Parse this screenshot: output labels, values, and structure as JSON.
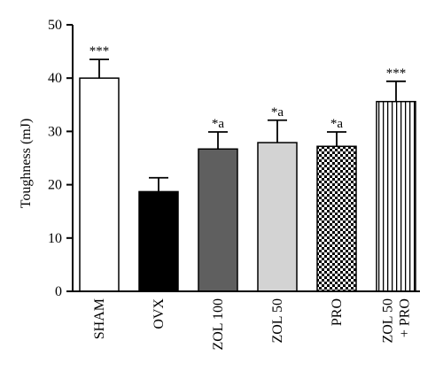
{
  "chart_data": {
    "type": "bar",
    "title": "",
    "xlabel": "",
    "ylabel": "Toughness (mJ)",
    "ylim": [
      0,
      50
    ],
    "yticks": [
      0,
      10,
      20,
      30,
      40,
      50
    ],
    "grid": false,
    "categories": [
      {
        "lines": [
          "SHAM"
        ]
      },
      {
        "lines": [
          "OVX"
        ]
      },
      {
        "lines": [
          "ZOL 100"
        ]
      },
      {
        "lines": [
          "ZOL 50"
        ]
      },
      {
        "lines": [
          "PRO"
        ]
      },
      {
        "lines": [
          "ZOL 50",
          "+ PRO"
        ]
      }
    ],
    "values": [
      40.0,
      18.7,
      26.7,
      27.9,
      27.2,
      35.6
    ],
    "errors": [
      3.5,
      2.6,
      3.2,
      4.2,
      2.7,
      3.8
    ],
    "annotations": [
      "***",
      "",
      "*a",
      "*a",
      "*a",
      "***"
    ],
    "fills": [
      "white",
      "black",
      "dark-gray",
      "light-gray",
      "checkerboard",
      "vertical-stripes"
    ],
    "colors": {
      "axis": "#000000",
      "black": "#000000",
      "dark_gray": "#5f5f5f",
      "light_gray": "#d3d3d3",
      "white": "#ffffff"
    }
  }
}
